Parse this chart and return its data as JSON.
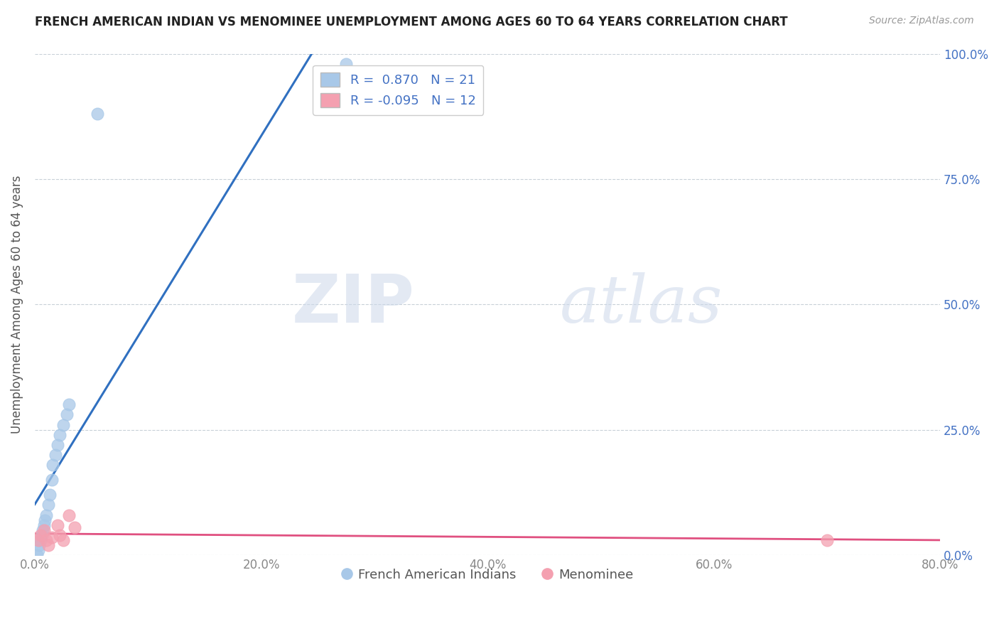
{
  "title": "FRENCH AMERICAN INDIAN VS MENOMINEE UNEMPLOYMENT AMONG AGES 60 TO 64 YEARS CORRELATION CHART",
  "source": "Source: ZipAtlas.com",
  "ylabel": "Unemployment Among Ages 60 to 64 years",
  "xlabel": "",
  "xlim": [
    0,
    0.8
  ],
  "ylim": [
    0,
    1.0
  ],
  "xticks": [
    0.0,
    0.2,
    0.4,
    0.6,
    0.8
  ],
  "yticks": [
    0.0,
    0.25,
    0.5,
    0.75,
    1.0
  ],
  "xtick_labels": [
    "0.0%",
    "20.0%",
    "40.0%",
    "60.0%",
    "80.0%"
  ],
  "right_ytick_labels": [
    "0.0%",
    "25.0%",
    "50.0%",
    "75.0%",
    "100.0%"
  ],
  "blue_R": 0.87,
  "blue_N": 21,
  "pink_R": -0.095,
  "pink_N": 12,
  "blue_color": "#a8c8e8",
  "pink_color": "#f4a0b0",
  "blue_line_color": "#3070c0",
  "pink_line_color": "#e05080",
  "legend_label_blue": "French American Indians",
  "legend_label_pink": "Menominee",
  "blue_x": [
    0.002,
    0.003,
    0.004,
    0.005,
    0.006,
    0.007,
    0.008,
    0.009,
    0.01,
    0.012,
    0.013,
    0.015,
    0.016,
    0.018,
    0.02,
    0.022,
    0.025,
    0.028,
    0.03,
    0.055,
    0.275
  ],
  "blue_y": [
    0.0,
    0.01,
    0.02,
    0.03,
    0.04,
    0.05,
    0.06,
    0.07,
    0.08,
    0.1,
    0.12,
    0.15,
    0.18,
    0.2,
    0.22,
    0.24,
    0.26,
    0.28,
    0.3,
    0.88,
    0.98
  ],
  "pink_x": [
    0.003,
    0.005,
    0.008,
    0.01,
    0.012,
    0.015,
    0.02,
    0.022,
    0.025,
    0.03,
    0.035,
    0.7
  ],
  "pink_y": [
    0.03,
    0.04,
    0.05,
    0.03,
    0.02,
    0.035,
    0.06,
    0.04,
    0.03,
    0.08,
    0.055,
    0.03
  ],
  "watermark_zip": "ZIP",
  "watermark_atlas": "atlas",
  "background_color": "#ffffff",
  "grid_color": "#c8d0d8"
}
